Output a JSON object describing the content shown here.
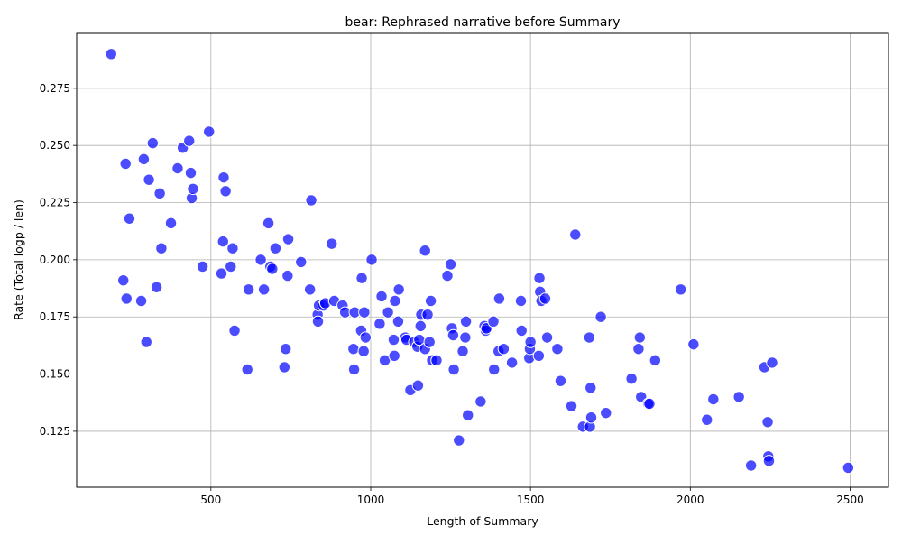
{
  "chart_data": {
    "type": "scatter",
    "title": "bear: Rephrased narrative before Summary",
    "xlabel": "Length of Summary",
    "ylabel": "Rate (Total logp / len)",
    "xlim": [
      80,
      2620
    ],
    "ylim": [
      0.1005,
      0.299
    ],
    "xticks": [
      500,
      1000,
      1500,
      2000,
      2500
    ],
    "yticks": [
      0.125,
      0.15,
      0.175,
      0.2,
      0.225,
      0.25,
      0.275
    ],
    "xtick_labels": [
      "500",
      "1000",
      "1500",
      "2000",
      "2500"
    ],
    "ytick_labels": [
      "0.125",
      "0.150",
      "0.175",
      "0.200",
      "0.225",
      "0.250",
      "0.275"
    ],
    "grid": true,
    "marker_color": "#0000ff",
    "marker_opacity": 0.7,
    "points": [
      [
        188,
        0.29
      ],
      [
        233,
        0.242
      ],
      [
        245,
        0.218
      ],
      [
        226,
        0.191
      ],
      [
        236,
        0.183
      ],
      [
        282,
        0.182
      ],
      [
        298,
        0.164
      ],
      [
        290,
        0.244
      ],
      [
        306,
        0.235
      ],
      [
        318,
        0.251
      ],
      [
        330,
        0.188
      ],
      [
        345,
        0.205
      ],
      [
        340,
        0.229
      ],
      [
        375,
        0.216
      ],
      [
        396,
        0.24
      ],
      [
        412,
        0.249
      ],
      [
        432,
        0.252
      ],
      [
        437,
        0.238
      ],
      [
        440,
        0.227
      ],
      [
        444,
        0.231
      ],
      [
        474,
        0.197
      ],
      [
        494,
        0.256
      ],
      [
        533,
        0.194
      ],
      [
        538,
        0.208
      ],
      [
        540,
        0.236
      ],
      [
        546,
        0.23
      ],
      [
        562,
        0.197
      ],
      [
        568,
        0.205
      ],
      [
        574,
        0.169
      ],
      [
        614,
        0.152
      ],
      [
        618,
        0.187
      ],
      [
        656,
        0.2
      ],
      [
        666,
        0.187
      ],
      [
        680,
        0.216
      ],
      [
        686,
        0.197
      ],
      [
        692,
        0.196
      ],
      [
        702,
        0.205
      ],
      [
        730,
        0.153
      ],
      [
        734,
        0.161
      ],
      [
        740,
        0.193
      ],
      [
        742,
        0.209
      ],
      [
        782,
        0.199
      ],
      [
        810,
        0.187
      ],
      [
        814,
        0.226
      ],
      [
        834,
        0.176
      ],
      [
        835,
        0.173
      ],
      [
        838,
        0.18
      ],
      [
        852,
        0.18
      ],
      [
        858,
        0.181
      ],
      [
        878,
        0.207
      ],
      [
        886,
        0.182
      ],
      [
        912,
        0.18
      ],
      [
        920,
        0.177
      ],
      [
        946,
        0.161
      ],
      [
        948,
        0.152
      ],
      [
        950,
        0.177
      ],
      [
        970,
        0.169
      ],
      [
        972,
        0.192
      ],
      [
        978,
        0.16
      ],
      [
        980,
        0.177
      ],
      [
        984,
        0.166
      ],
      [
        1003,
        0.2
      ],
      [
        1028,
        0.172
      ],
      [
        1034,
        0.184
      ],
      [
        1044,
        0.156
      ],
      [
        1054,
        0.177
      ],
      [
        1072,
        0.165
      ],
      [
        1074,
        0.158
      ],
      [
        1076,
        0.182
      ],
      [
        1086,
        0.173
      ],
      [
        1088,
        0.187
      ],
      [
        1108,
        0.166
      ],
      [
        1112,
        0.165
      ],
      [
        1124,
        0.143
      ],
      [
        1136,
        0.164
      ],
      [
        1146,
        0.162
      ],
      [
        1148,
        0.145
      ],
      [
        1152,
        0.165
      ],
      [
        1156,
        0.171
      ],
      [
        1158,
        0.176
      ],
      [
        1170,
        0.204
      ],
      [
        1170,
        0.161
      ],
      [
        1178,
        0.176
      ],
      [
        1184,
        0.164
      ],
      [
        1188,
        0.182
      ],
      [
        1192,
        0.156
      ],
      [
        1206,
        0.156
      ],
      [
        1240,
        0.193
      ],
      [
        1250,
        0.198
      ],
      [
        1254,
        0.17
      ],
      [
        1258,
        0.167
      ],
      [
        1260,
        0.152
      ],
      [
        1276,
        0.121
      ],
      [
        1288,
        0.16
      ],
      [
        1296,
        0.166
      ],
      [
        1298,
        0.173
      ],
      [
        1304,
        0.132
      ],
      [
        1344,
        0.138
      ],
      [
        1356,
        0.171
      ],
      [
        1360,
        0.169
      ],
      [
        1362,
        0.17
      ],
      [
        1384,
        0.173
      ],
      [
        1386,
        0.152
      ],
      [
        1400,
        0.16
      ],
      [
        1402,
        0.183
      ],
      [
        1416,
        0.161
      ],
      [
        1442,
        0.155
      ],
      [
        1470,
        0.182
      ],
      [
        1472,
        0.169
      ],
      [
        1496,
        0.157
      ],
      [
        1498,
        0.161
      ],
      [
        1500,
        0.164
      ],
      [
        1526,
        0.158
      ],
      [
        1528,
        0.192
      ],
      [
        1530,
        0.186
      ],
      [
        1534,
        0.182
      ],
      [
        1546,
        0.183
      ],
      [
        1552,
        0.166
      ],
      [
        1584,
        0.161
      ],
      [
        1594,
        0.147
      ],
      [
        1628,
        0.136
      ],
      [
        1640,
        0.211
      ],
      [
        1664,
        0.127
      ],
      [
        1684,
        0.166
      ],
      [
        1686,
        0.127
      ],
      [
        1688,
        0.144
      ],
      [
        1690,
        0.131
      ],
      [
        1720,
        0.175
      ],
      [
        1736,
        0.133
      ],
      [
        1816,
        0.148
      ],
      [
        1838,
        0.161
      ],
      [
        1842,
        0.166
      ],
      [
        1846,
        0.14
      ],
      [
        1868,
        0.137
      ],
      [
        1872,
        0.137
      ],
      [
        1890,
        0.156
      ],
      [
        1970,
        0.187
      ],
      [
        2010,
        0.163
      ],
      [
        2052,
        0.13
      ],
      [
        2072,
        0.139
      ],
      [
        2152,
        0.14
      ],
      [
        2190,
        0.11
      ],
      [
        2232,
        0.153
      ],
      [
        2242,
        0.129
      ],
      [
        2244,
        0.114
      ],
      [
        2246,
        0.112
      ],
      [
        2256,
        0.155
      ],
      [
        2494,
        0.109
      ]
    ]
  }
}
